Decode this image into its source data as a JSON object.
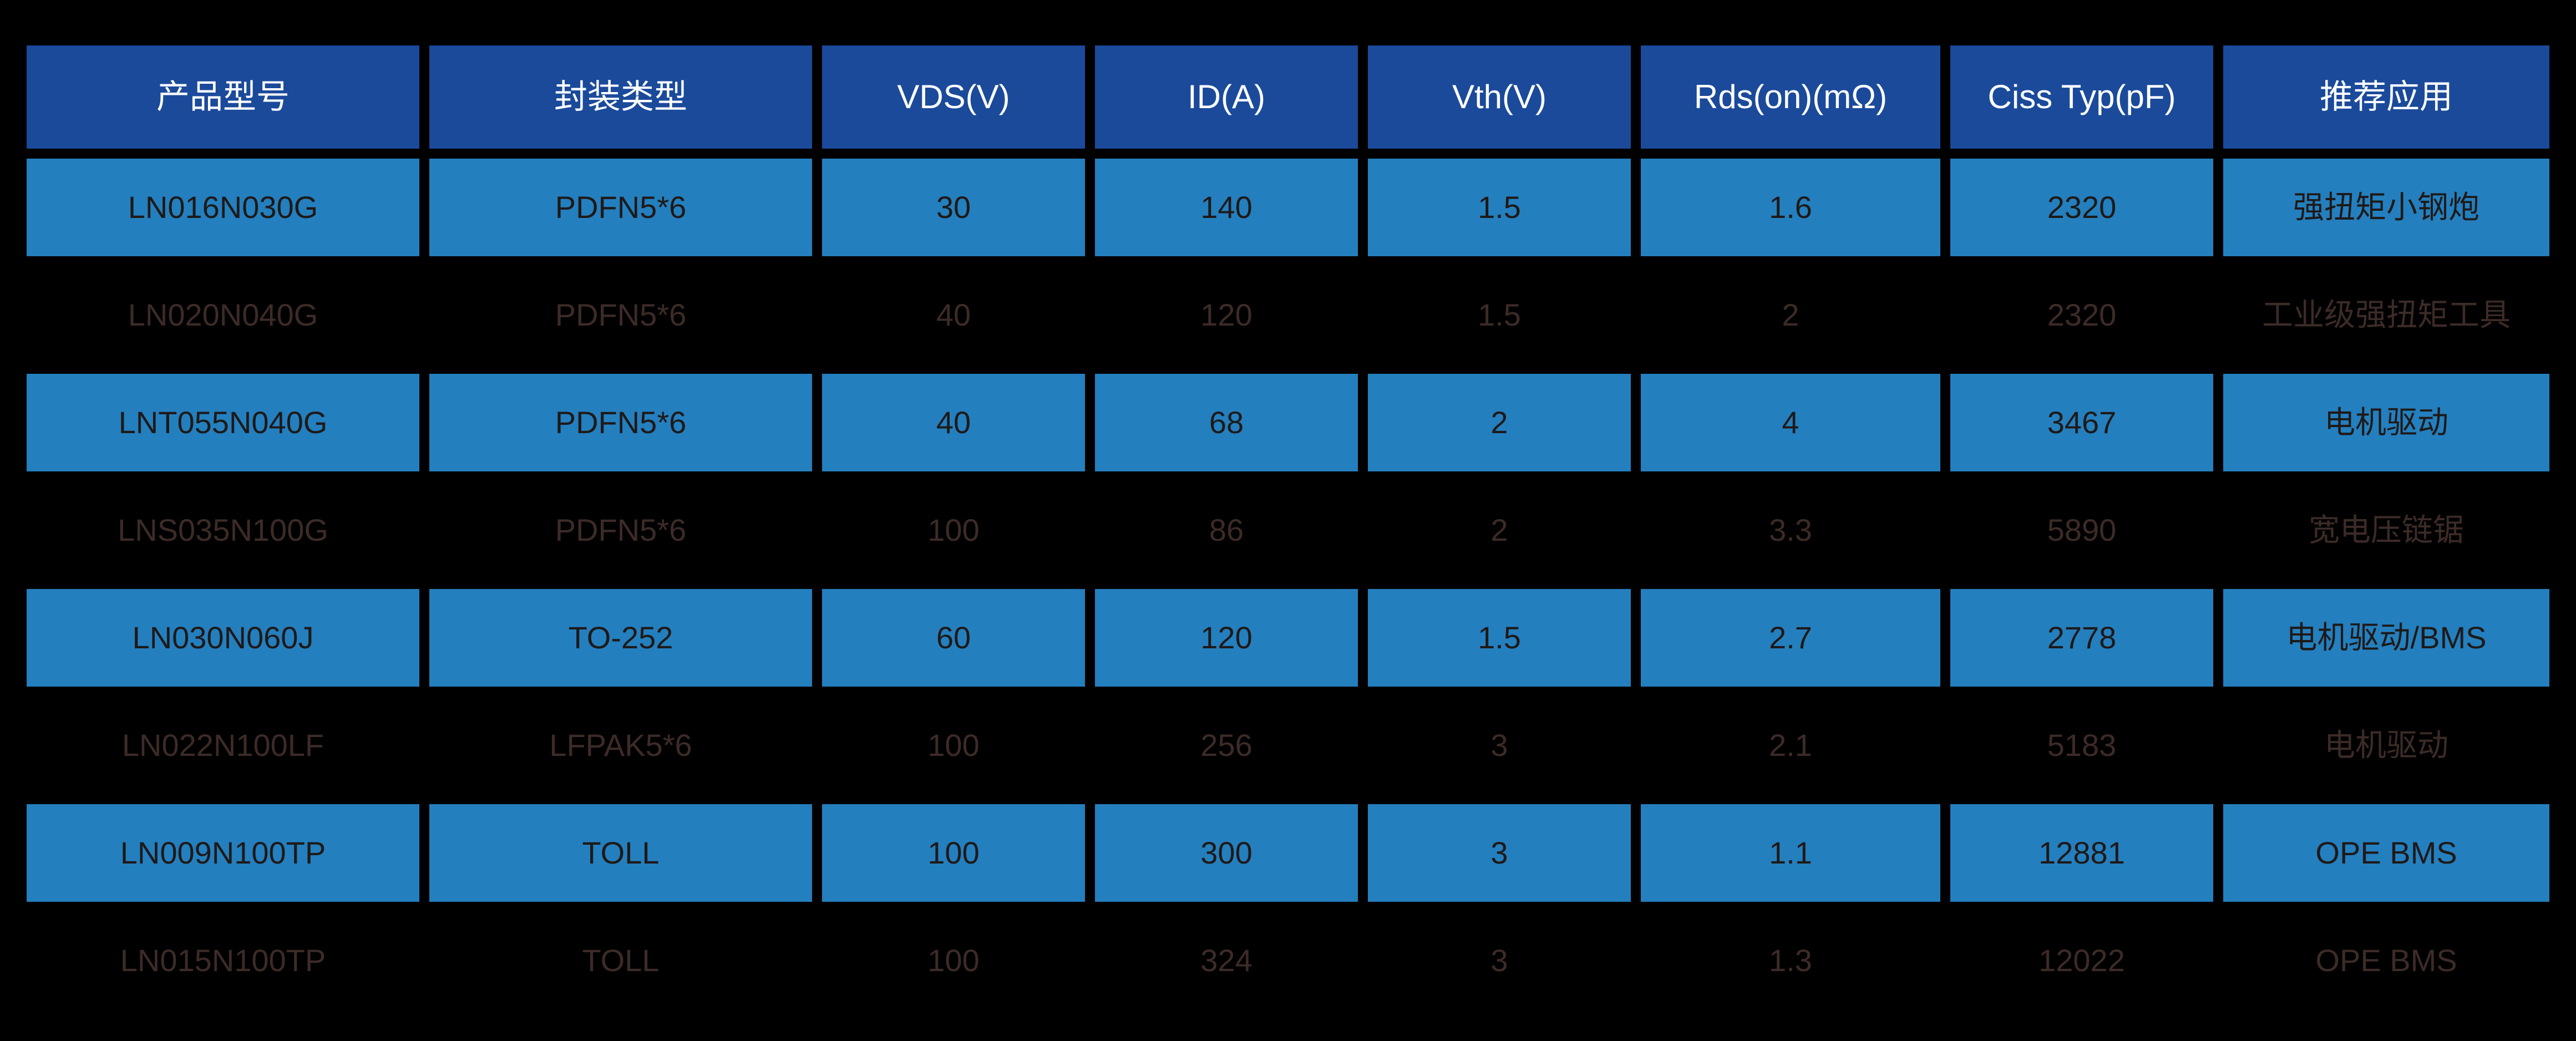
{
  "page": {
    "background": "#000000"
  },
  "colors": {
    "header_bg": "#1B4A9B",
    "header_text": "#FFFFFF",
    "row_blue_bg": "#247FBE",
    "row_blue_text": "#1E1918",
    "row_dark_bg": "#000000",
    "row_dark_text": "#3C2B27"
  },
  "table": {
    "columns": [
      {
        "key": "model",
        "label": "产品型号"
      },
      {
        "key": "package",
        "label": "封装类型"
      },
      {
        "key": "vds",
        "label": "VDS(V)"
      },
      {
        "key": "id",
        "label": "ID(A)"
      },
      {
        "key": "vth",
        "label": "Vth(V)"
      },
      {
        "key": "rdson",
        "label": "Rds(on)(mΩ)"
      },
      {
        "key": "ciss",
        "label": "Ciss Typ(pF)"
      },
      {
        "key": "application",
        "label": "推荐应用"
      }
    ],
    "rows": [
      {
        "highlighted": true,
        "cells": [
          "LN016N030G",
          "PDFN5*6",
          "30",
          "140",
          "1.5",
          "1.6",
          "2320",
          "强扭矩小钢炮"
        ]
      },
      {
        "highlighted": false,
        "cells": [
          "LN020N040G",
          "PDFN5*6",
          "40",
          "120",
          "1.5",
          "2",
          "2320",
          "工业级强扭矩工具"
        ]
      },
      {
        "highlighted": true,
        "cells": [
          "LNT055N040G",
          "PDFN5*6",
          "40",
          "68",
          "2",
          "4",
          "3467",
          "电机驱动"
        ]
      },
      {
        "highlighted": false,
        "cells": [
          "LNS035N100G",
          "PDFN5*6",
          "100",
          "86",
          "2",
          "3.3",
          "5890",
          "宽电压链锯"
        ]
      },
      {
        "highlighted": true,
        "cells": [
          "LN030N060J",
          "TO-252",
          "60",
          "120",
          "1.5",
          "2.7",
          "2778",
          "电机驱动/BMS"
        ]
      },
      {
        "highlighted": false,
        "cells": [
          "LN022N100LF",
          "LFPAK5*6",
          "100",
          "256",
          "3",
          "2.1",
          "5183",
          "电机驱动"
        ]
      },
      {
        "highlighted": true,
        "cells": [
          "LN009N100TP",
          "TOLL",
          "100",
          "300",
          "3",
          "1.1",
          "12881",
          "OPE BMS"
        ]
      },
      {
        "highlighted": false,
        "cells": [
          "LN015N100TP",
          "TOLL",
          "100",
          "324",
          "3",
          "1.3",
          "12022",
          "OPE BMS"
        ]
      }
    ]
  },
  "chart_data": {
    "type": "table",
    "title": "",
    "columns": [
      "产品型号",
      "封装类型",
      "VDS(V)",
      "ID(A)",
      "Vth(V)",
      "Rds(on)(mΩ)",
      "Ciss Typ(pF)",
      "推荐应用"
    ],
    "rows": [
      [
        "LN016N030G",
        "PDFN5*6",
        30,
        140,
        1.5,
        1.6,
        2320,
        "强扭矩小钢炮"
      ],
      [
        "LN020N040G",
        "PDFN5*6",
        40,
        120,
        1.5,
        2,
        2320,
        "工业级强扭矩工具"
      ],
      [
        "LNT055N040G",
        "PDFN5*6",
        40,
        68,
        2,
        4,
        3467,
        "电机驱动"
      ],
      [
        "LNS035N100G",
        "PDFN5*6",
        100,
        86,
        2,
        3.3,
        5890,
        "宽电压链锯"
      ],
      [
        "LN030N060J",
        "TO-252",
        60,
        120,
        1.5,
        2.7,
        2778,
        "电机驱动/BMS"
      ],
      [
        "LN022N100LF",
        "LFPAK5*6",
        100,
        256,
        3,
        2.1,
        5183,
        "电机驱动"
      ],
      [
        "LN009N100TP",
        "TOLL",
        100,
        300,
        3,
        1.1,
        12881,
        "OPE BMS"
      ],
      [
        "LN015N100TP",
        "TOLL",
        100,
        324,
        3,
        1.3,
        12022,
        "OPE BMS"
      ]
    ],
    "layout_hints": {
      "highlighted_row_indices": [
        0,
        2,
        4,
        6
      ],
      "dimmed_row_indices": [
        1,
        3,
        5,
        7
      ],
      "grid": "cell blocks separated by black gutters",
      "header_position": "top"
    }
  }
}
